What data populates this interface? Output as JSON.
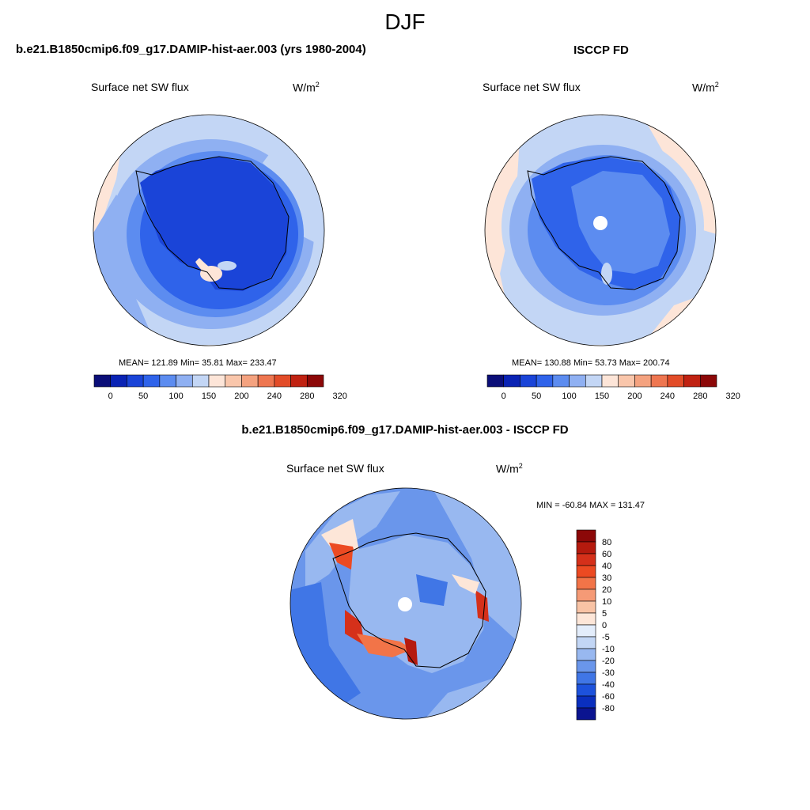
{
  "figure": {
    "season": "DJF",
    "model_title": "b.e21.B1850cmip6.f09_g17.DAMIP-hist-aer.003 (yrs 1980-2004)",
    "obs_title": "ISCCP FD",
    "diff_title": "b.e21.B1850cmip6.f09_g17.DAMIP-hist-aer.003 - ISCCP FD"
  },
  "panels": {
    "model": {
      "variable": "Surface net SW flux",
      "units": "W/m",
      "units_sup": "2",
      "stats": "MEAN= 121.89  Min=  35.81  Max= 233.47"
    },
    "obs": {
      "variable": "Surface net SW flux",
      "units": "W/m",
      "units_sup": "2",
      "stats": "MEAN= 130.88  Min=  53.73  Max= 200.74"
    },
    "diff": {
      "variable": "Surface net SW flux",
      "units": "W/m",
      "units_sup": "2",
      "stats": "MIN = -60.84 MAX = 131.47"
    }
  },
  "colorbars": {
    "abs": {
      "colors": [
        "#0b0e78",
        "#0a23b4",
        "#1a44d8",
        "#2f63ea",
        "#5c8cf0",
        "#8fb0f2",
        "#c3d6f5",
        "#fde5d8",
        "#f9c6ab",
        "#f4a27f",
        "#ee7650",
        "#e24c28",
        "#c02212",
        "#8c0808"
      ],
      "labels": [
        "0",
        "50",
        "100",
        "150",
        "200",
        "240",
        "280",
        "320"
      ]
    },
    "diff": {
      "colors": [
        "#8c0808",
        "#b51a0e",
        "#d5301a",
        "#ec4a22",
        "#f27448",
        "#f59a76",
        "#f8c3a5",
        "#fde6d8",
        "#e3edfb",
        "#c2d6f5",
        "#98b8f0",
        "#6a96eb",
        "#4076e6",
        "#1d52dc",
        "#0a2fbe",
        "#0b1490"
      ],
      "labels": [
        "80",
        "60",
        "40",
        "30",
        "20",
        "10",
        "5",
        "0",
        "-5",
        "-10",
        "-20",
        "-30",
        "-40",
        "-60",
        "-80"
      ]
    }
  }
}
